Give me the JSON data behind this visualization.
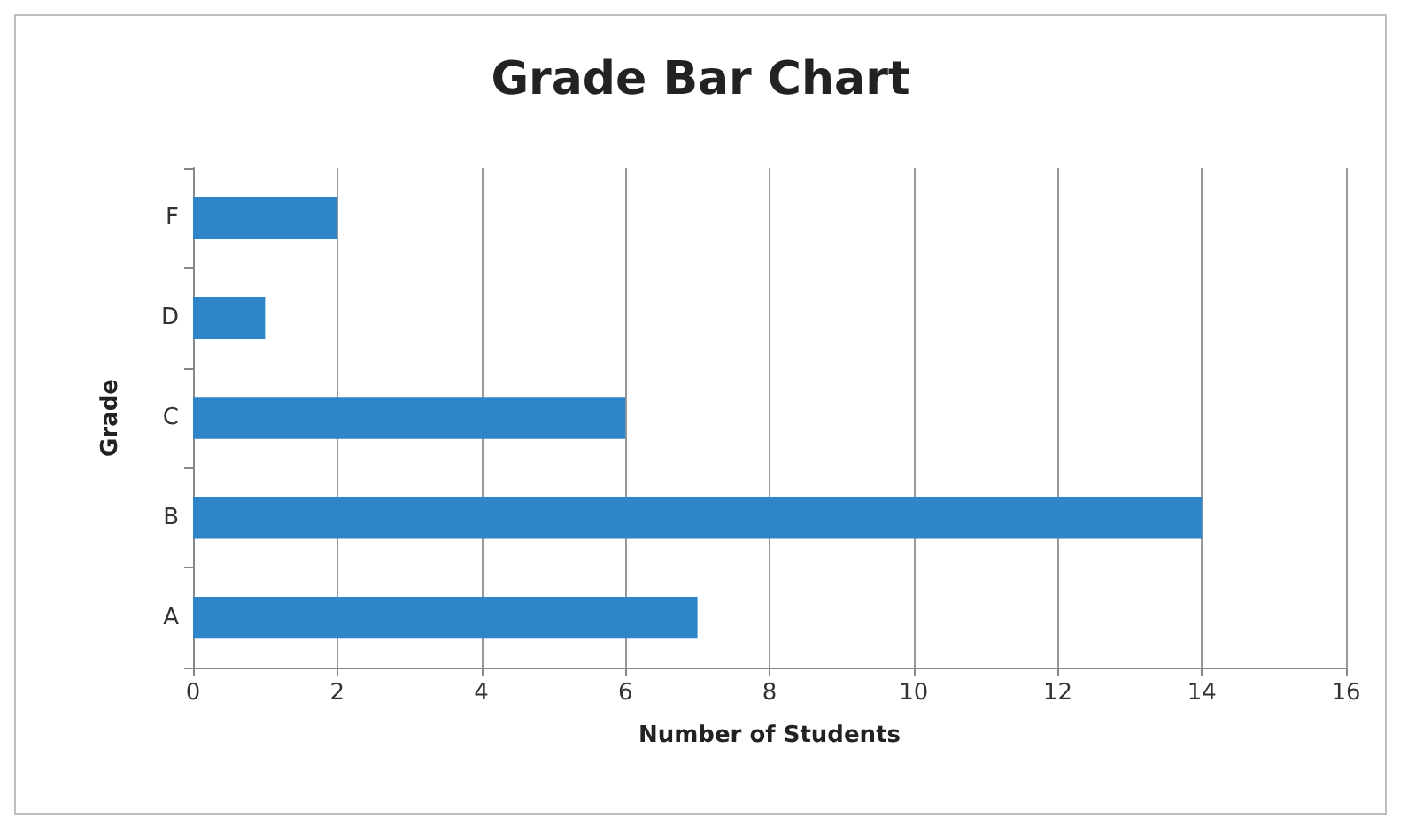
{
  "chart_data": {
    "type": "bar",
    "orientation": "horizontal",
    "title": "Grade Bar Chart",
    "xlabel": "Number of Students",
    "ylabel": "Grade",
    "categories": [
      "F",
      "D",
      "C",
      "B",
      "A"
    ],
    "values": [
      2,
      1,
      6,
      14,
      7
    ],
    "color": "#2e86c8",
    "xlim": [
      0,
      16
    ],
    "xticks": [
      0,
      2,
      4,
      6,
      8,
      10,
      12,
      14,
      16
    ],
    "grid": "x"
  }
}
